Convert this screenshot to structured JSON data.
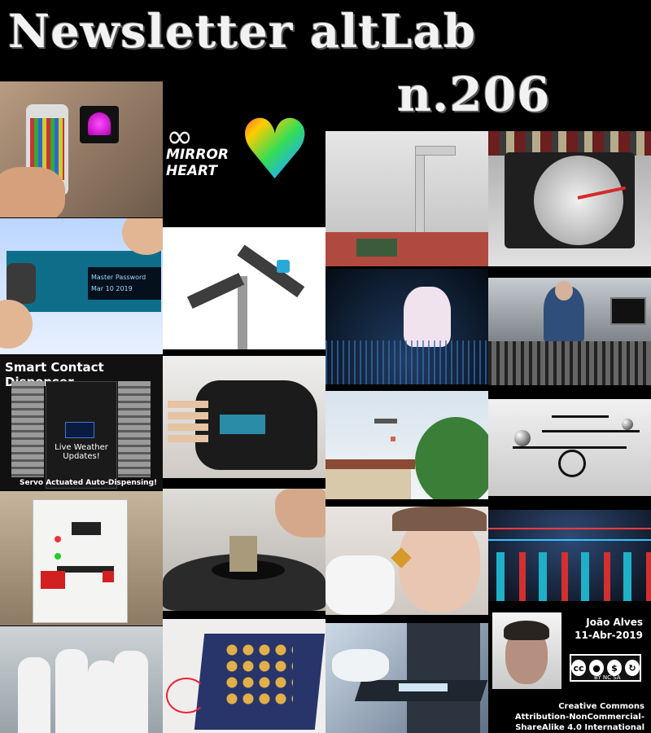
{
  "header": {
    "title_line1": "Newsletter altLab",
    "title_line2": "n.206"
  },
  "tiles": {
    "mirror_heart": {
      "line1": "MIRROR",
      "line2": "HEART"
    },
    "oled_screen": {
      "line1": "Master Password",
      "line2": "Mar 10 2019"
    },
    "dispenser": {
      "title": "Smart Contact Dispenser",
      "weather": "Live Weather Updates!",
      "footer": "Servo Actuated Auto-Dispensing!"
    }
  },
  "credits": {
    "author": "João Alves",
    "date": "11-Abr-2019",
    "license_line1": "Creative Commons",
    "license_line2": "Attribution-NonCommercial-",
    "license_line3": "ShareAlike 4.0 International",
    "cc_badge": "BY  NC  SA"
  }
}
